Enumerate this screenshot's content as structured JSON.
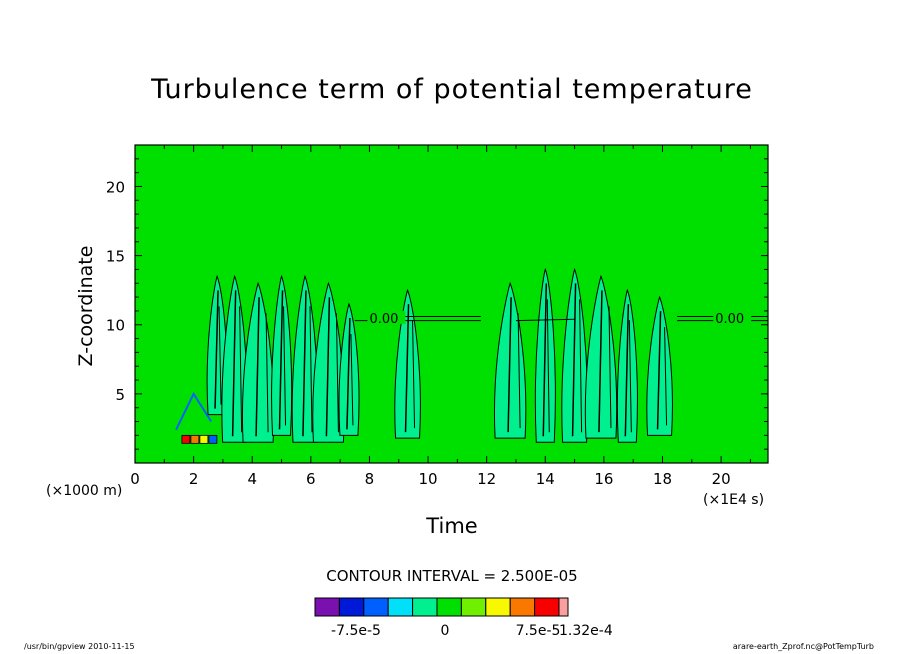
{
  "chart_data": {
    "type": "heatmap",
    "title": "Turbulence term of potential temperature",
    "xlabel": "Time",
    "ylabel": "Z-coordinate",
    "x_unit": "(×1E4 s)",
    "y_unit": "(×1000 m)",
    "xlim": [
      0,
      21.6
    ],
    "ylim": [
      0,
      23
    ],
    "x_ticks": [
      "0",
      "2",
      "4",
      "6",
      "8",
      "10",
      "12",
      "14",
      "16",
      "18",
      "20"
    ],
    "x_tick_values": [
      0,
      2,
      4,
      6,
      8,
      10,
      12,
      14,
      16,
      18,
      20
    ],
    "y_ticks": [
      "5",
      "10",
      "15",
      "20"
    ],
    "y_tick_values": [
      5,
      10,
      15,
      20
    ],
    "contour_interval_text": "CONTOUR INTERVAL = 2.500E-05",
    "contour_labels": [
      {
        "text": "0.00",
        "x": 8.0,
        "y": 10.5
      },
      {
        "text": "0.00",
        "x": 19.8,
        "y": 10.5
      }
    ],
    "colorbar": {
      "colors": [
        "#7a10b0",
        "#0018d8",
        "#0060ff",
        "#00e0f8",
        "#00f090",
        "#00e000",
        "#70f000",
        "#f8f800",
        "#f87800",
        "#f80000",
        "#f8a0a0"
      ],
      "labels": [
        "-7.5e-5",
        "0",
        "7.5e-5",
        "1.32e-4"
      ]
    },
    "background_color": "#00e000",
    "turbulence_patches": [
      {
        "x": 2.8,
        "y0": 3.5,
        "y1": 13.5
      },
      {
        "x": 3.4,
        "y0": 1.5,
        "y1": 13.5
      },
      {
        "x": 4.2,
        "y0": 1.5,
        "y1": 13.0
      },
      {
        "x": 5.0,
        "y0": 2.0,
        "y1": 13.5
      },
      {
        "x": 5.8,
        "y0": 1.5,
        "y1": 13.5
      },
      {
        "x": 6.6,
        "y0": 1.5,
        "y1": 13.0
      },
      {
        "x": 7.3,
        "y0": 2.0,
        "y1": 11.5
      },
      {
        "x": 9.3,
        "y0": 1.8,
        "y1": 12.5
      },
      {
        "x": 12.8,
        "y0": 1.8,
        "y1": 13.0
      },
      {
        "x": 14.0,
        "y0": 1.5,
        "y1": 14.0
      },
      {
        "x": 15.0,
        "y0": 1.5,
        "y1": 14.0
      },
      {
        "x": 15.9,
        "y0": 1.8,
        "y1": 13.5
      },
      {
        "x": 16.8,
        "y0": 1.5,
        "y1": 12.5
      },
      {
        "x": 17.9,
        "y0": 2.0,
        "y1": 12.0
      }
    ]
  },
  "footer": {
    "left": "/usr/bin/gpview  2010-11-15",
    "right": "arare-earth_Zprof.nc@PotTempTurb"
  }
}
